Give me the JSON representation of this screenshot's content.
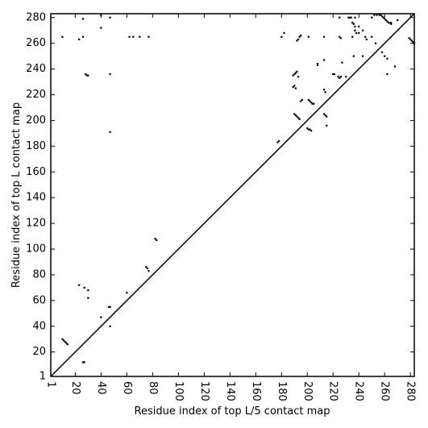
{
  "chart_data": {
    "type": "scatter",
    "x_label": "Residue index of top L/5 contact map",
    "y_label": "Residue index of top L contact map",
    "color": "#000000",
    "xlim": [
      1,
      283
    ],
    "ylim": [
      1,
      283
    ],
    "xticks": [
      1,
      20,
      40,
      60,
      80,
      100,
      120,
      140,
      160,
      180,
      200,
      220,
      240,
      260,
      280
    ],
    "yticks": [
      1,
      20,
      40,
      60,
      80,
      100,
      120,
      140,
      160,
      180,
      200,
      220,
      240,
      260,
      280
    ],
    "x": [
      10,
      11,
      12,
      13,
      14,
      26,
      27,
      23,
      27,
      30,
      30,
      40,
      46,
      47,
      47,
      60,
      75,
      76,
      77,
      82,
      83,
      177,
      178,
      189,
      190,
      191,
      192,
      193,
      189,
      190,
      191,
      195,
      196,
      201,
      202,
      203,
      204,
      205,
      190,
      191,
      192,
      193,
      194,
      200,
      201,
      202,
      203,
      213,
      214,
      215,
      215,
      208,
      208,
      220,
      221,
      224,
      225,
      226,
      235,
      236,
      237,
      256,
      258,
      259,
      260,
      261,
      262,
      263,
      264,
      265,
      279,
      280,
      281,
      282,
      283,
      10,
      26,
      26,
      23,
      40,
      40,
      47,
      28,
      29,
      30,
      47,
      47,
      62,
      65,
      70,
      77,
      180,
      182,
      192,
      193,
      194,
      195,
      201,
      213,
      213,
      213,
      214,
      225,
      225,
      226,
      227,
      232,
      233,
      234,
      235,
      236,
      237,
      238,
      237,
      243,
      240,
      245,
      246,
      250,
      250,
      252,
      253,
      254,
      257,
      258,
      260,
      262,
      265,
      268,
      270,
      262,
      240,
      243,
      230
    ],
    "y": [
      30,
      29,
      28,
      27,
      26,
      12,
      12,
      72,
      70,
      68,
      62,
      47,
      55,
      55,
      40,
      66,
      86,
      85,
      83,
      108,
      107,
      183,
      184,
      235,
      236,
      237,
      238,
      234,
      226,
      227,
      225,
      215,
      216,
      216,
      215,
      214,
      213,
      213,
      205,
      204,
      203,
      202,
      201,
      194,
      193,
      193,
      192,
      205,
      204,
      203,
      196,
      244,
      243,
      236,
      236,
      234,
      233,
      234,
      276,
      275,
      273,
      282,
      281,
      280,
      279,
      278,
      277,
      276,
      276,
      275,
      264,
      263,
      262,
      261,
      260,
      265,
      279,
      265,
      263,
      282,
      272,
      280,
      236,
      235,
      235,
      236,
      191,
      265,
      265,
      265,
      265,
      265,
      268,
      262,
      263,
      265,
      266,
      265,
      265,
      247,
      224,
      222,
      280,
      265,
      264,
      245,
      280,
      280,
      280,
      265,
      250,
      270,
      268,
      280,
      250,
      268,
      265,
      263,
      265,
      280,
      282,
      260,
      282,
      282,
      253,
      250,
      236,
      276,
      242,
      278,
      248,
      273,
      270,
      234
    ]
  }
}
